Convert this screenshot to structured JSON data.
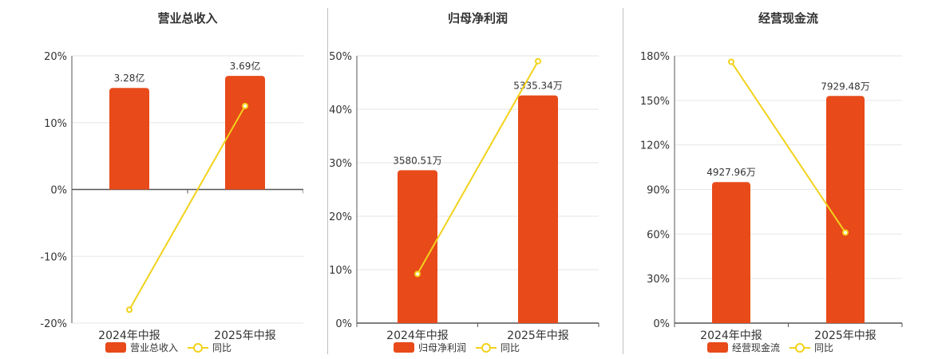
{
  "colors": {
    "bar": "#e84a1a",
    "line": "#f2d21b",
    "axis": "#555555",
    "grid": "#e6e6e6",
    "text": "#333333"
  },
  "chart_data": [
    {
      "type": "bar",
      "title": "营业总收入",
      "categories": [
        "2024年中报",
        "2025年中报"
      ],
      "bar_label": "营业总收入",
      "line_label": "同比",
      "bar_display": [
        "3.28亿",
        "3.69亿"
      ],
      "line_values": [
        -18,
        12.5
      ],
      "ylim": [
        -20,
        20
      ],
      "ticks": [
        "20%",
        "10%",
        "0%",
        "-10%",
        "-20%"
      ],
      "tick_values": [
        20,
        10,
        0,
        -10,
        -20
      ],
      "bar_values": [
        15.2,
        17.0
      ],
      "legend": "bottom"
    },
    {
      "type": "bar",
      "title": "归母净利润",
      "categories": [
        "2024年中报",
        "2025年中报"
      ],
      "bar_label": "归母净利润",
      "line_label": "同比",
      "bar_display": [
        "3580.51万",
        "5335.34万"
      ],
      "line_values": [
        9.2,
        49.0
      ],
      "ylim": [
        0,
        50
      ],
      "ticks": [
        "50%",
        "40%",
        "30%",
        "20%",
        "10%",
        "0%"
      ],
      "tick_values": [
        50,
        40,
        30,
        20,
        10,
        0
      ],
      "bar_values": [
        28.6,
        42.6
      ],
      "legend": "bottom"
    },
    {
      "type": "bar",
      "title": "经营现金流",
      "categories": [
        "2024年中报",
        "2025年中报"
      ],
      "bar_label": "经营现金流",
      "line_label": "同比",
      "bar_display": [
        "4927.96万",
        "7929.48万"
      ],
      "line_values": [
        176,
        61
      ],
      "ylim": [
        0,
        180
      ],
      "ticks": [
        "180%",
        "150%",
        "120%",
        "90%",
        "60%",
        "30%",
        "0%"
      ],
      "tick_values": [
        180,
        150,
        120,
        90,
        60,
        30,
        0
      ],
      "bar_values": [
        95,
        153
      ],
      "legend": "bottom"
    }
  ]
}
